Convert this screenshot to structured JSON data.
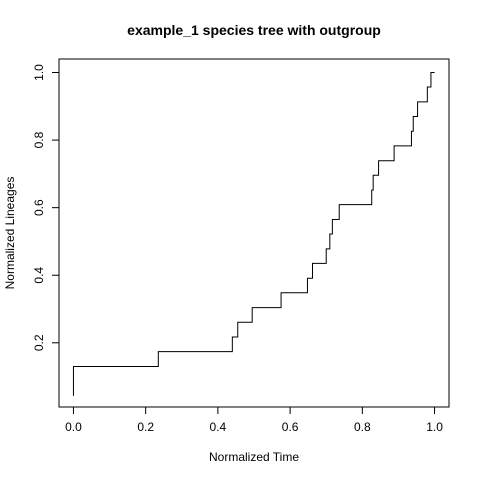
{
  "chart_data": {
    "type": "line",
    "step": true,
    "title": "example_1 species tree with outgroup",
    "xlabel": "Normalized Time",
    "ylabel": "Normalized Lineages",
    "xlim": [
      -0.04,
      1.04
    ],
    "ylim": [
      0.01,
      1.04
    ],
    "xticks": [
      0.0,
      0.2,
      0.4,
      0.6,
      0.8,
      1.0
    ],
    "xtick_labels": [
      "0.0",
      "0.2",
      "0.4",
      "0.6",
      "0.8",
      "1.0"
    ],
    "yticks": [
      0.2,
      0.4,
      0.6,
      0.8,
      1.0
    ],
    "ytick_labels": [
      "0.2",
      "0.4",
      "0.6",
      "0.8",
      "1.0"
    ],
    "grid": false,
    "series": [
      {
        "x": [
          0.0,
          0.0,
          0.235,
          0.44,
          0.447,
          0.455,
          0.495,
          0.575,
          0.648,
          0.662,
          0.7,
          0.71,
          0.717,
          0.736,
          0.826,
          0.828,
          0.83,
          0.845,
          0.888,
          0.936,
          0.941,
          0.947,
          0.953,
          0.98,
          0.983,
          0.99,
          1.0
        ],
        "y": [
          0.043,
          0.13,
          0.174,
          0.217,
          0.217,
          0.261,
          0.304,
          0.348,
          0.391,
          0.435,
          0.478,
          0.522,
          0.565,
          0.609,
          0.652,
          0.652,
          0.696,
          0.739,
          0.783,
          0.826,
          0.87,
          0.87,
          0.913,
          0.957,
          0.957,
          1.0,
          1.0
        ]
      }
    ]
  }
}
